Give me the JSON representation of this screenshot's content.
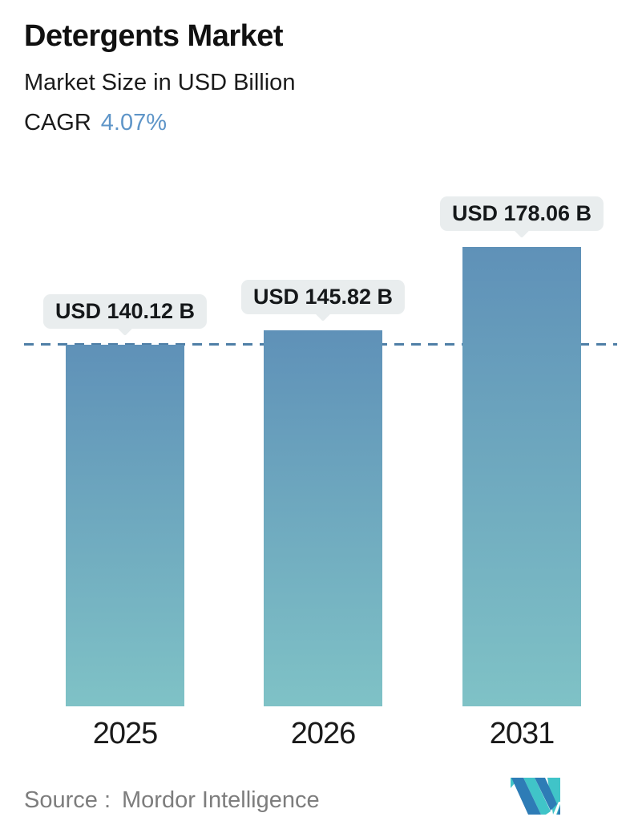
{
  "header": {
    "title": "Detergents Market",
    "subtitle": "Market Size in USD Billion",
    "cagr_label": "CAGR",
    "cagr_value": "4.07%"
  },
  "chart_data": {
    "type": "bar",
    "title": "Detergents Market",
    "subtitle": "Market Size in USD Billion",
    "cagr_percent": 4.07,
    "categories": [
      "2025",
      "2026",
      "2031"
    ],
    "values": [
      140.12,
      145.82,
      178.06
    ],
    "value_labels": [
      "USD 140.12 B",
      "USD 145.82 B",
      "USD 178.06 B"
    ],
    "unit": "USD Billion",
    "ylim": [
      0,
      178.06
    ],
    "grid": false,
    "legend": "none",
    "reference_line": {
      "style": "dashed",
      "value": 140.12
    }
  },
  "footer": {
    "source_label": "Source :",
    "source_name": "Mordor Intelligence",
    "logo_name": "mordor-intelligence-logo"
  },
  "colors": {
    "bar_gradient_top": "#5f91b8",
    "bar_gradient_bottom": "#7fc2c6",
    "dashed_line": "#4f7fa6",
    "cagr_accent": "#5e95c8",
    "bubble_bg": "#e9edee",
    "bubble_text": "#15181a",
    "title_text": "#111111",
    "source_text": "#7d7d7d",
    "logo_teal": "#40c4c8",
    "logo_blue": "#2e7cb6"
  }
}
